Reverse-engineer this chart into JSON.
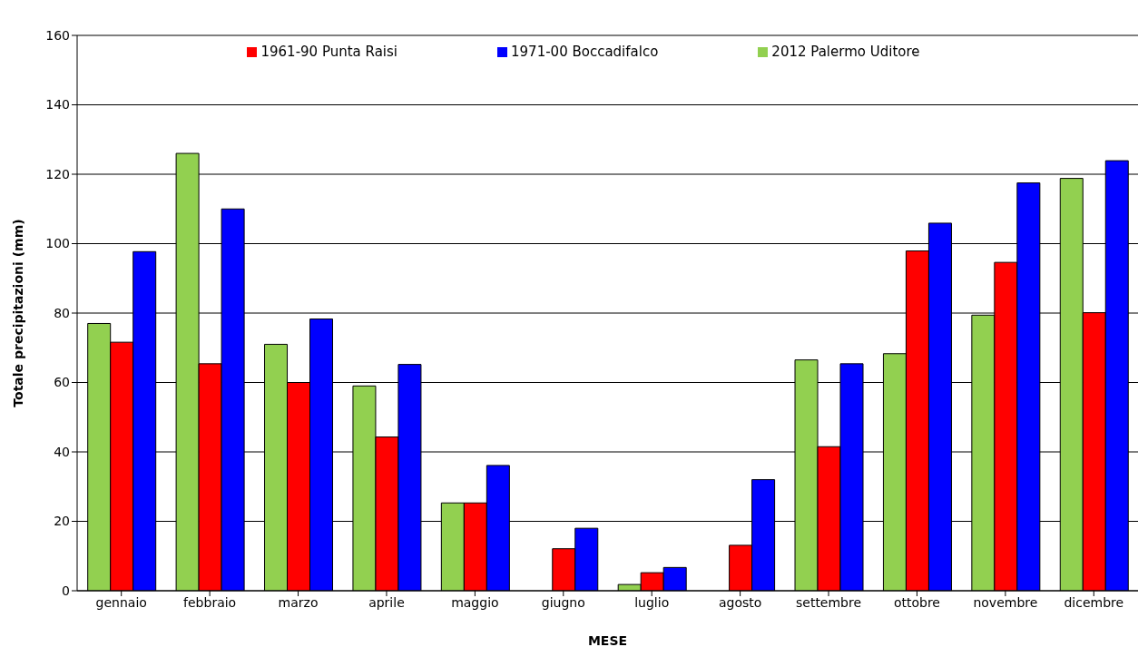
{
  "chart_data": {
    "type": "bar",
    "xlabel": "MESE",
    "ylabel": "Totale precipitazioni  (mm)",
    "categories": [
      "gennaio",
      "febbraio",
      "marzo",
      "aprile",
      "maggio",
      "giugno",
      "luglio",
      "agosto",
      "settembre",
      "ottobre",
      "novembre",
      "dicembre"
    ],
    "series": [
      {
        "name": "2012 Palermo Uditore",
        "color": "#92d050",
        "values": [
          77,
          126,
          71,
          59,
          25.3,
          0,
          1.8,
          0,
          66.5,
          68.3,
          79.4,
          118.8
        ]
      },
      {
        "name": "1961-90  Punta Raisi",
        "color": "#ff0000",
        "values": [
          71.6,
          65.4,
          60,
          44.3,
          25.3,
          12.1,
          5.2,
          13.1,
          41.5,
          97.9,
          94.6,
          80.1
        ]
      },
      {
        "name": "1971-00  Boccadifalco",
        "color": "#0000ff",
        "values": [
          97.7,
          110,
          78.3,
          65.2,
          36.1,
          18,
          6.7,
          32,
          65.4,
          105.9,
          117.5,
          123.9
        ]
      }
    ],
    "ylim": [
      0,
      160
    ],
    "yticks": [
      0,
      20,
      40,
      60,
      80,
      100,
      120,
      140,
      160
    ],
    "grid": "y",
    "legend": "top"
  }
}
